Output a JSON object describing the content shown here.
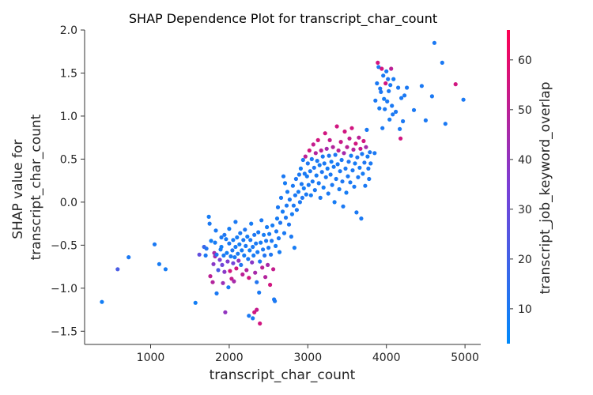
{
  "chart_data": {
    "type": "scatter",
    "title": "SHAP Dependence Plot for transcript_char_count",
    "xlabel": "transcript_char_count",
    "ylabel_lines": [
      "SHAP value for",
      "transcript_char_count"
    ],
    "colorbar_label": "transcript_job_keyword_overlap",
    "xlim": [
      160,
      5200
    ],
    "ylim": [
      -1.58,
      2.0
    ],
    "x_ticks": [
      1000,
      2000,
      3000,
      4000,
      5000
    ],
    "y_ticks": [
      -1.5,
      -1.0,
      -0.5,
      0.0,
      0.5,
      1.0,
      1.5,
      2.0
    ],
    "y_tick_labels": [
      "−1.5",
      "−1.0",
      "−0.5",
      "0.0",
      "0.5",
      "1.0",
      "1.5",
      "2.0"
    ],
    "color_range": [
      3,
      66
    ],
    "colorbar_ticks": [
      10,
      20,
      30,
      40,
      50,
      60
    ],
    "colors": {
      "low": "#008afb",
      "mid": "#7a3fd6",
      "high": "#ff0052"
    },
    "grid": false,
    "points": [
      [
        380,
        -1.16,
        8
      ],
      [
        580,
        -0.78,
        22
      ],
      [
        720,
        -0.64,
        10
      ],
      [
        1050,
        -0.49,
        10
      ],
      [
        1110,
        -0.72,
        9
      ],
      [
        1190,
        -0.78,
        9
      ],
      [
        1570,
        -1.17,
        8
      ],
      [
        1620,
        -0.61,
        28
      ],
      [
        1680,
        -0.52,
        18
      ],
      [
        1700,
        -0.62,
        10
      ],
      [
        1710,
        -0.54,
        12
      ],
      [
        1740,
        -0.17,
        9
      ],
      [
        1750,
        -0.25,
        10
      ],
      [
        1760,
        -0.86,
        50
      ],
      [
        1770,
        -0.45,
        8
      ],
      [
        1790,
        -0.93,
        48
      ],
      [
        1800,
        -0.72,
        38
      ],
      [
        1810,
        -0.59,
        45
      ],
      [
        1820,
        -0.63,
        44
      ],
      [
        1820,
        -0.47,
        9
      ],
      [
        1830,
        -0.33,
        10
      ],
      [
        1840,
        -0.61,
        12
      ],
      [
        1840,
        -1.06,
        10
      ],
      [
        1860,
        -0.79,
        22
      ],
      [
        1880,
        -0.67,
        35
      ],
      [
        1890,
        -0.55,
        9
      ],
      [
        1900,
        -0.52,
        8
      ],
      [
        1900,
        -0.41,
        10
      ],
      [
        1910,
        -0.73,
        32
      ],
      [
        1920,
        -0.94,
        42
      ],
      [
        1930,
        -0.62,
        10
      ],
      [
        1940,
        -0.38,
        11
      ],
      [
        1940,
        -0.81,
        38
      ],
      [
        1950,
        -1.28,
        40
      ],
      [
        1960,
        -0.43,
        9
      ],
      [
        1970,
        -0.59,
        8
      ],
      [
        1980,
        -0.69,
        36
      ],
      [
        1990,
        -0.99,
        9
      ],
      [
        2000,
        -0.48,
        10
      ],
      [
        2000,
        -0.31,
        9
      ],
      [
        2010,
        -0.8,
        55
      ],
      [
        2020,
        -0.63,
        10
      ],
      [
        2030,
        -0.89,
        52
      ],
      [
        2040,
        -0.56,
        11
      ],
      [
        2050,
        -0.44,
        9
      ],
      [
        2050,
        -0.71,
        33
      ],
      [
        2060,
        -0.92,
        45
      ],
      [
        2070,
        -0.64,
        10
      ],
      [
        2080,
        -0.52,
        9
      ],
      [
        2080,
        -0.23,
        10
      ],
      [
        2090,
        -0.77,
        55
      ],
      [
        2100,
        -0.41,
        9
      ],
      [
        2110,
        -0.6,
        10
      ],
      [
        2120,
        -0.68,
        40
      ],
      [
        2130,
        -0.49,
        8
      ],
      [
        2140,
        -0.36,
        10
      ],
      [
        2150,
        -0.73,
        12
      ],
      [
        2160,
        -0.56,
        9
      ],
      [
        2170,
        -0.84,
        50
      ],
      [
        2180,
        -0.44,
        10
      ],
      [
        2190,
        -0.62,
        9
      ],
      [
        2200,
        -0.32,
        11
      ],
      [
        2210,
        -0.51,
        10
      ],
      [
        2220,
        -0.79,
        48
      ],
      [
        2230,
        -0.4,
        9
      ],
      [
        2240,
        -0.66,
        10
      ],
      [
        2250,
        -0.88,
        55
      ],
      [
        2250,
        -1.32,
        10
      ],
      [
        2260,
        -0.56,
        8
      ],
      [
        2270,
        -0.44,
        10
      ],
      [
        2280,
        -0.25,
        9
      ],
      [
        2290,
        -0.7,
        38
      ],
      [
        2300,
        -0.52,
        10
      ],
      [
        2300,
        -1.35,
        10
      ],
      [
        2310,
        -0.62,
        9
      ],
      [
        2320,
        -0.38,
        11
      ],
      [
        2320,
        -1.28,
        55
      ],
      [
        2330,
        -0.82,
        45
      ],
      [
        2340,
        -0.48,
        10
      ],
      [
        2350,
        -0.93,
        12
      ],
      [
        2350,
        -1.25,
        52
      ],
      [
        2360,
        -0.58,
        9
      ],
      [
        2370,
        -0.35,
        10
      ],
      [
        2380,
        -1.05,
        10
      ],
      [
        2390,
        -0.69,
        11
      ],
      [
        2390,
        -1.41,
        55
      ],
      [
        2400,
        -0.47,
        9
      ],
      [
        2410,
        -0.21,
        10
      ],
      [
        2420,
        -0.76,
        50
      ],
      [
        2430,
        -0.55,
        10
      ],
      [
        2440,
        -0.38,
        9
      ],
      [
        2450,
        -0.62,
        12
      ],
      [
        2460,
        -0.87,
        48
      ],
      [
        2470,
        -0.45,
        10
      ],
      [
        2480,
        -0.29,
        9
      ],
      [
        2490,
        -0.73,
        45
      ],
      [
        2500,
        -0.53,
        10
      ],
      [
        2510,
        -0.37,
        9
      ],
      [
        2520,
        -0.96,
        55
      ],
      [
        2530,
        -0.61,
        11
      ],
      [
        2540,
        -0.45,
        10
      ],
      [
        2550,
        -0.27,
        9
      ],
      [
        2560,
        -0.78,
        52
      ],
      [
        2570,
        -1.13,
        10
      ],
      [
        2580,
        -1.15,
        10
      ],
      [
        2590,
        -0.51,
        9
      ],
      [
        2600,
        -0.34,
        10
      ],
      [
        2610,
        -0.19,
        9
      ],
      [
        2620,
        -0.06,
        10
      ],
      [
        2630,
        -0.42,
        10
      ],
      [
        2640,
        -0.58,
        9
      ],
      [
        2650,
        -0.24,
        11
      ],
      [
        2660,
        0.05,
        10
      ],
      [
        2680,
        -0.11,
        9
      ],
      [
        2690,
        0.3,
        10
      ],
      [
        2700,
        -0.36,
        10
      ],
      [
        2710,
        0.22,
        9
      ],
      [
        2720,
        -0.18,
        10
      ],
      [
        2730,
        -0.04,
        10
      ],
      [
        2740,
        0.12,
        9
      ],
      [
        2760,
        -0.26,
        11
      ],
      [
        2770,
        0.03,
        10
      ],
      [
        2790,
        -0.4,
        10
      ],
      [
        2800,
        -0.14,
        9
      ],
      [
        2810,
        0.19,
        10
      ],
      [
        2820,
        -0.04,
        10
      ],
      [
        2830,
        -0.53,
        9
      ],
      [
        2840,
        0.08,
        10
      ],
      [
        2850,
        0.27,
        11
      ],
      [
        2860,
        -0.09,
        10
      ],
      [
        2880,
        0.12,
        9
      ],
      [
        2890,
        0.32,
        10
      ],
      [
        2900,
        0.0,
        10
      ],
      [
        2910,
        0.39,
        9
      ],
      [
        2920,
        0.21,
        10
      ],
      [
        2930,
        0.05,
        11
      ],
      [
        2940,
        0.49,
        10
      ],
      [
        2950,
        0.16,
        9
      ],
      [
        2960,
        0.33,
        10
      ],
      [
        2970,
        0.53,
        50
      ],
      [
        2980,
        0.09,
        10
      ],
      [
        2990,
        0.3,
        9
      ],
      [
        3000,
        0.45,
        11
      ],
      [
        3010,
        0.2,
        10
      ],
      [
        3020,
        0.6,
        55
      ],
      [
        3030,
        0.36,
        10
      ],
      [
        3040,
        0.08,
        9
      ],
      [
        3050,
        0.5,
        10
      ],
      [
        3060,
        0.24,
        10
      ],
      [
        3070,
        0.67,
        52
      ],
      [
        3080,
        0.4,
        11
      ],
      [
        3090,
        0.14,
        10
      ],
      [
        3100,
        0.57,
        48
      ],
      [
        3110,
        0.31,
        9
      ],
      [
        3120,
        0.48,
        10
      ],
      [
        3130,
        0.72,
        55
      ],
      [
        3140,
        0.22,
        10
      ],
      [
        3150,
        0.43,
        9
      ],
      [
        3160,
        0.05,
        10
      ],
      [
        3170,
        0.6,
        50
      ],
      [
        3180,
        0.35,
        11
      ],
      [
        3190,
        0.53,
        10
      ],
      [
        3200,
        0.17,
        9
      ],
      [
        3210,
        0.45,
        10
      ],
      [
        3220,
        0.8,
        55
      ],
      [
        3230,
        0.29,
        10
      ],
      [
        3240,
        0.62,
        45
      ],
      [
        3250,
        0.39,
        9
      ],
      [
        3260,
        0.1,
        10
      ],
      [
        3270,
        0.54,
        11
      ],
      [
        3280,
        0.72,
        52
      ],
      [
        3290,
        0.32,
        10
      ],
      [
        3300,
        0.47,
        9
      ],
      [
        3310,
        0.2,
        10
      ],
      [
        3320,
        0.64,
        48
      ],
      [
        3330,
        0.41,
        10
      ],
      [
        3340,
        0.0,
        9
      ],
      [
        3350,
        0.55,
        11
      ],
      [
        3360,
        0.27,
        10
      ],
      [
        3370,
        0.88,
        55
      ],
      [
        3380,
        0.44,
        10
      ],
      [
        3390,
        0.6,
        50
      ],
      [
        3400,
        0.15,
        9
      ],
      [
        3410,
        0.36,
        10
      ],
      [
        3420,
        0.7,
        53
      ],
      [
        3430,
        0.49,
        10
      ],
      [
        3440,
        0.24,
        11
      ],
      [
        3450,
        -0.05,
        10
      ],
      [
        3460,
        0.57,
        45
      ],
      [
        3470,
        0.82,
        55
      ],
      [
        3480,
        0.39,
        10
      ],
      [
        3490,
        0.11,
        9
      ],
      [
        3500,
        0.64,
        50
      ],
      [
        3510,
        0.3,
        10
      ],
      [
        3520,
        0.47,
        11
      ],
      [
        3530,
        0.74,
        52
      ],
      [
        3540,
        0.23,
        10
      ],
      [
        3550,
        0.54,
        9
      ],
      [
        3560,
        0.86,
        55
      ],
      [
        3570,
        0.37,
        10
      ],
      [
        3580,
        0.61,
        48
      ],
      [
        3590,
        0.18,
        10
      ],
      [
        3600,
        0.45,
        9
      ],
      [
        3610,
        0.68,
        55
      ],
      [
        3620,
        -0.12,
        10
      ],
      [
        3630,
        0.52,
        11
      ],
      [
        3640,
        0.29,
        10
      ],
      [
        3650,
        0.75,
        50
      ],
      [
        3660,
        0.4,
        9
      ],
      [
        3670,
        0.62,
        52
      ],
      [
        3680,
        -0.19,
        10
      ],
      [
        3690,
        0.56,
        10
      ],
      [
        3700,
        0.33,
        9
      ],
      [
        3710,
        0.71,
        55
      ],
      [
        3720,
        0.46,
        11
      ],
      [
        3730,
        0.19,
        10
      ],
      [
        3740,
        0.64,
        45
      ],
      [
        3750,
        0.84,
        10
      ],
      [
        3760,
        0.53,
        9
      ],
      [
        3770,
        0.39,
        10
      ],
      [
        3780,
        0.27,
        10
      ],
      [
        3790,
        0.58,
        11
      ],
      [
        3800,
        0.45,
        10
      ],
      [
        3850,
        0.57,
        10
      ],
      [
        3860,
        1.18,
        10
      ],
      [
        3880,
        1.38,
        10
      ],
      [
        3890,
        1.62,
        55
      ],
      [
        3900,
        1.57,
        10
      ],
      [
        3910,
        1.09,
        9
      ],
      [
        3920,
        1.32,
        10
      ],
      [
        3930,
        1.28,
        11
      ],
      [
        3940,
        1.55,
        55
      ],
      [
        3950,
        0.86,
        10
      ],
      [
        3960,
        1.47,
        10
      ],
      [
        3970,
        1.2,
        9
      ],
      [
        3980,
        1.08,
        10
      ],
      [
        3990,
        1.38,
        55
      ],
      [
        4000,
        1.52,
        10
      ],
      [
        4010,
        1.17,
        10
      ],
      [
        4020,
        1.43,
        11
      ],
      [
        4030,
        1.29,
        10
      ],
      [
        4040,
        0.96,
        9
      ],
      [
        4050,
        1.36,
        10
      ],
      [
        4060,
        1.55,
        50
      ],
      [
        4070,
        1.12,
        10
      ],
      [
        4080,
        1.02,
        10
      ],
      [
        4090,
        1.43,
        9
      ],
      [
        4120,
        1.05,
        10
      ],
      [
        4150,
        1.33,
        10
      ],
      [
        4170,
        0.85,
        10
      ],
      [
        4180,
        0.74,
        55
      ],
      [
        4190,
        1.21,
        10
      ],
      [
        4210,
        0.94,
        10
      ],
      [
        4230,
        1.24,
        10
      ],
      [
        4260,
        1.33,
        10
      ],
      [
        4350,
        1.07,
        10
      ],
      [
        4450,
        1.35,
        10
      ],
      [
        4500,
        0.95,
        10
      ],
      [
        4580,
        1.23,
        10
      ],
      [
        4610,
        1.85,
        10
      ],
      [
        4710,
        1.62,
        10
      ],
      [
        4750,
        0.91,
        10
      ],
      [
        4880,
        1.37,
        55
      ],
      [
        4980,
        1.19,
        10
      ]
    ]
  }
}
